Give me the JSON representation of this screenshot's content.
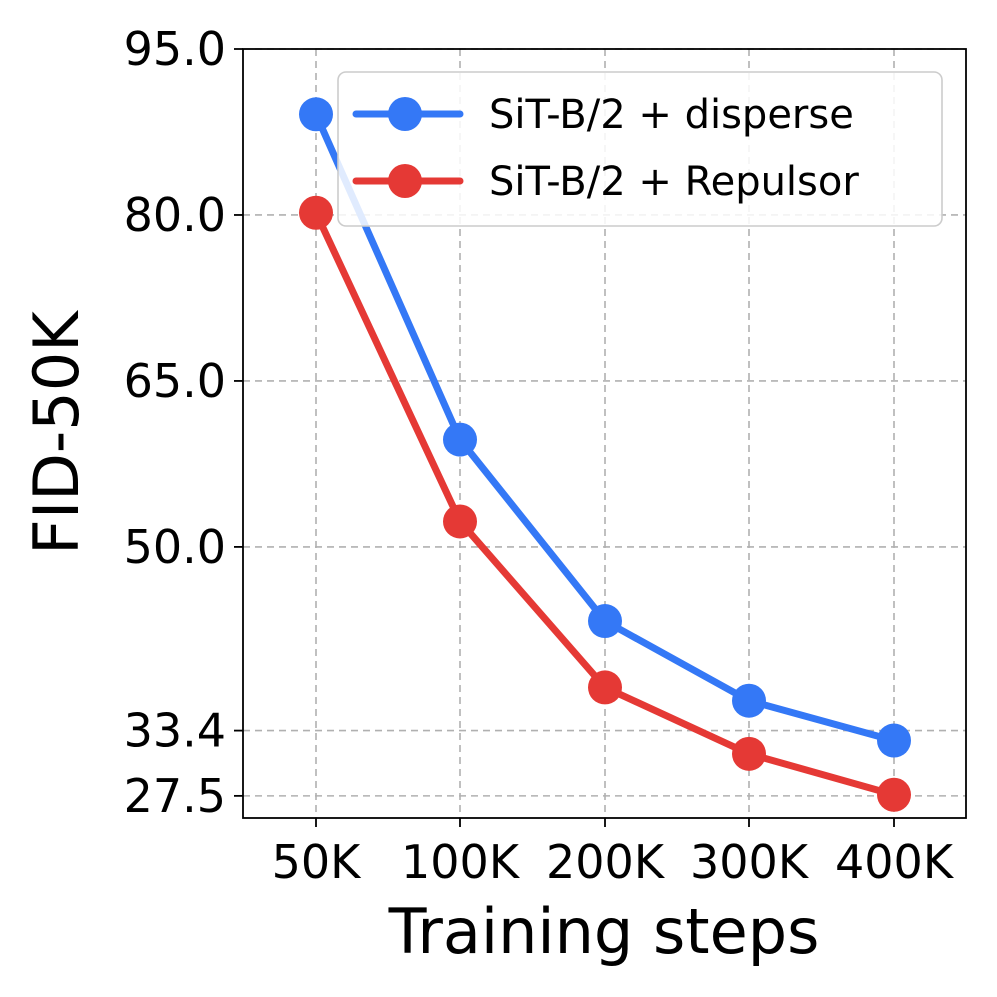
{
  "chart_data": {
    "type": "line",
    "title": "",
    "xlabel": "Training steps",
    "ylabel": "FID-50K",
    "categories": [
      "50K",
      "100K",
      "200K",
      "300K",
      "400K"
    ],
    "yticks": [
      27.5,
      33.4,
      50.0,
      65.0,
      80.0,
      95.0
    ],
    "ytick_labels": [
      "27.5",
      "33.4",
      "50.0",
      "65.0",
      "80.0",
      "95.0"
    ],
    "ylim": [
      25.5,
      95.0
    ],
    "grid": true,
    "legend_position": "top-right",
    "series": [
      {
        "name": "SiT-B/2 + disperse",
        "color": "#3478f6",
        "values": [
          89.1,
          59.7,
          43.3,
          36.1,
          32.5
        ]
      },
      {
        "name": "SiT-B/2 + Repulsor",
        "color": "#e53935",
        "values": [
          80.2,
          52.3,
          37.3,
          31.3,
          27.6
        ]
      }
    ]
  }
}
